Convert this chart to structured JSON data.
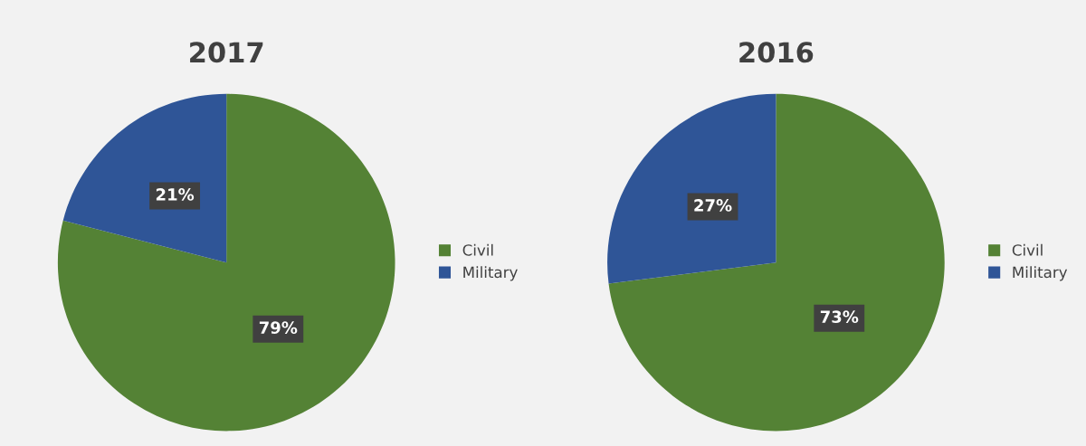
{
  "chart_data": [
    {
      "type": "pie",
      "title": "2017",
      "categories": [
        "Civil",
        "Military"
      ],
      "values": [
        79,
        21
      ],
      "value_labels": [
        "79%",
        "21%"
      ],
      "colors": [
        "#548235",
        "#2f5597"
      ],
      "legend": "right"
    },
    {
      "type": "pie",
      "title": "2016",
      "categories": [
        "Civil",
        "Military"
      ],
      "values": [
        73,
        27
      ],
      "value_labels": [
        "73%",
        "27%"
      ],
      "colors": [
        "#548235",
        "#2f5597"
      ],
      "legend": "right"
    }
  ]
}
